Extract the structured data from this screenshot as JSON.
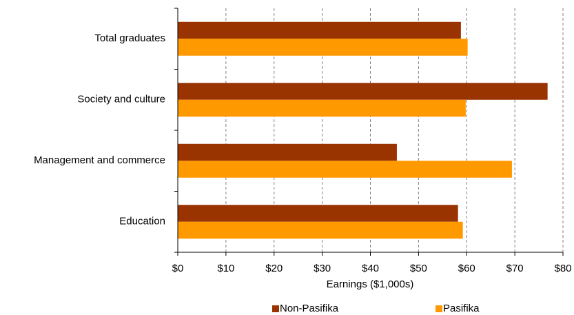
{
  "chart_data": {
    "type": "hbar",
    "categories": [
      "Total graduates",
      "Society and culture",
      "Management and commerce",
      "Education"
    ],
    "series": [
      {
        "name": "Non-Pasifika",
        "color": "#993300",
        "values": [
          58.8,
          76.8,
          45.5,
          58.2
        ]
      },
      {
        "name": "Pasifika",
        "color": "#ff9900",
        "values": [
          60.2,
          59.8,
          69.4,
          59.2
        ]
      }
    ],
    "xlabel": "Earnings ($1,000s)",
    "xlim": [
      0,
      80
    ],
    "xticks": [
      {
        "value": 0,
        "label": "$0"
      },
      {
        "value": 10,
        "label": "$10"
      },
      {
        "value": 20,
        "label": "$20"
      },
      {
        "value": 30,
        "label": "$30"
      },
      {
        "value": 40,
        "label": "$40"
      },
      {
        "value": 50,
        "label": "$50"
      },
      {
        "value": 60,
        "label": "$60"
      },
      {
        "value": 70,
        "label": "$70"
      },
      {
        "value": 80,
        "label": "$80"
      }
    ],
    "grid": true,
    "legend": "bottom"
  }
}
